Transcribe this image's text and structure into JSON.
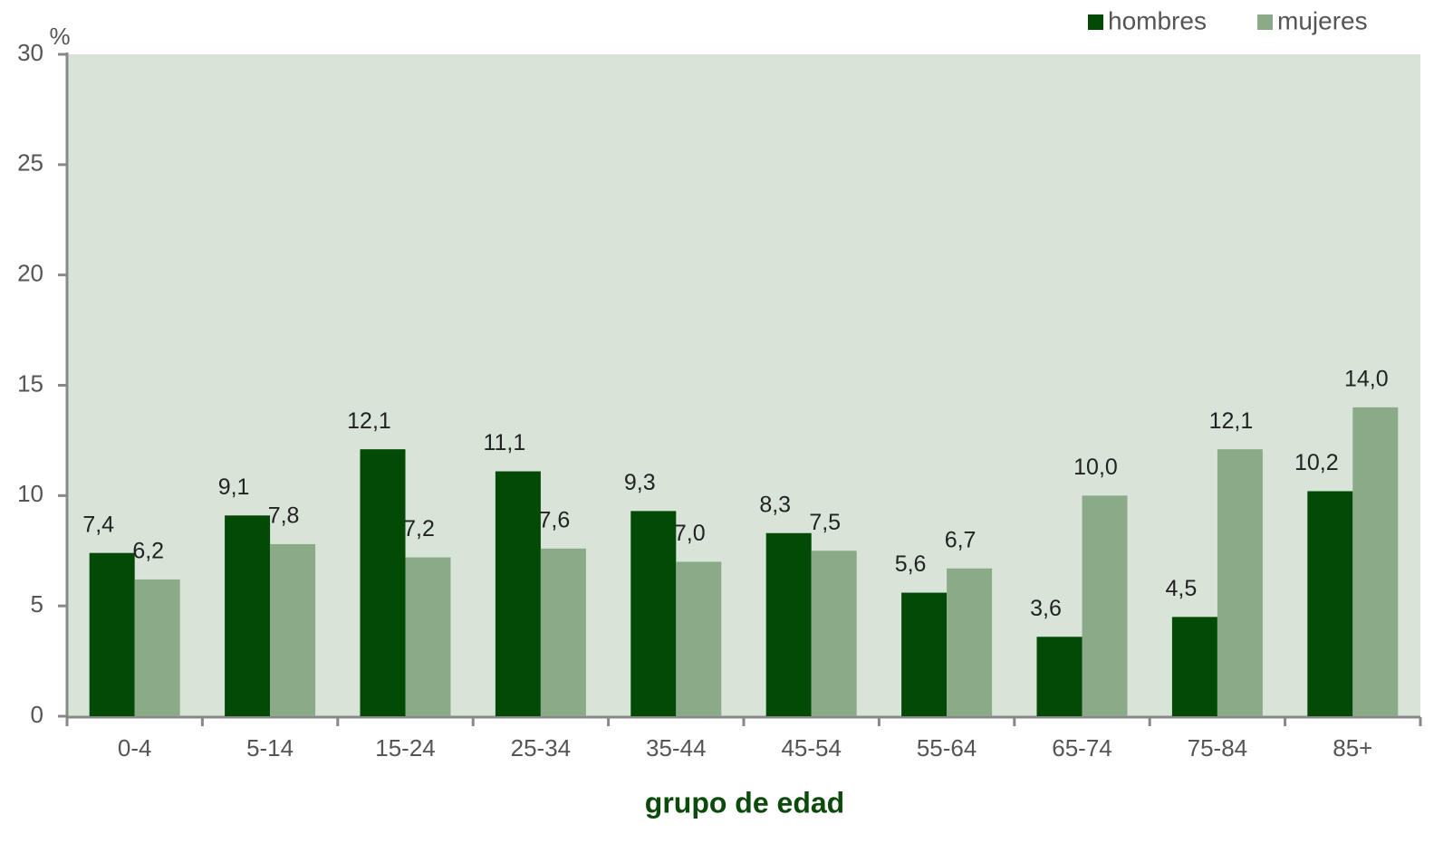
{
  "chart_data": {
    "type": "bar",
    "x_label": "grupo de edad",
    "y_label": "%",
    "categories": [
      "0-4",
      "5-14",
      "15-24",
      "25-34",
      "35-44",
      "45-54",
      "55-64",
      "65-74",
      "75-84",
      "85+"
    ],
    "series": [
      {
        "name": "hombres",
        "color": "#034a06",
        "values": [
          7.4,
          9.1,
          12.1,
          11.1,
          9.3,
          8.3,
          5.6,
          3.6,
          4.5,
          10.2
        ],
        "value_labels": [
          "7,4",
          "9,1",
          "12,1",
          "11,1",
          "9,3",
          "8,3",
          "5,6",
          "3,6",
          "4,5",
          "10,2"
        ]
      },
      {
        "name": "mujeres",
        "color": "#8aaa88",
        "values": [
          6.2,
          7.8,
          7.2,
          7.6,
          7.0,
          7.5,
          6.7,
          10.0,
          12.1,
          14.0
        ],
        "value_labels": [
          "6,2",
          "7,8",
          "7,2",
          "7,6",
          "7,0",
          "7,5",
          "6,7",
          "10,0",
          "12,1",
          "14,0"
        ]
      }
    ],
    "ylim": [
      0,
      30
    ],
    "yticks": [
      0,
      5,
      10,
      15,
      20,
      25,
      30
    ],
    "legend": "top-right",
    "grid": false
  }
}
